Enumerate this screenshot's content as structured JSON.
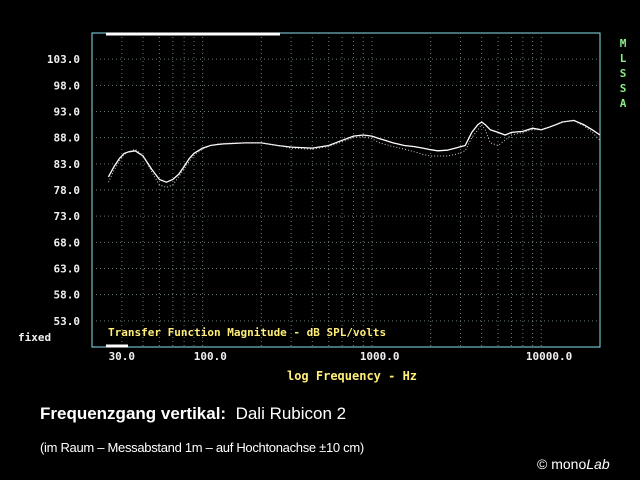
{
  "chart_data": {
    "type": "line",
    "inner_title": "Transfer Function Magnitude - dB SPL/volts",
    "xlabel": "log Frequency - Hz",
    "x_scale": "log",
    "xlim": [
      20,
      20000
    ],
    "x_tick_labels": [
      "30.0",
      "100.0",
      "1000.0",
      "10000.0"
    ],
    "x_tick_values": [
      30,
      100,
      1000,
      10000
    ],
    "ylim": [
      48,
      108
    ],
    "y_ticks": [
      "103.0",
      "98.0",
      "93.0",
      "88.0",
      "83.0",
      "78.0",
      "73.0",
      "68.0",
      "63.0",
      "58.0",
      "53.0"
    ],
    "y_bottom_label": "fixed",
    "side_label": [
      "M",
      "L",
      "S",
      "S",
      "A"
    ],
    "grid": true,
    "colors": {
      "background": "#000000",
      "frame": "#88e0ee",
      "grid": "#6a7a7a",
      "axis_text": "#f0f0f0",
      "x_label": "#ffee77",
      "inner_title": "#ffee77",
      "side_label": "#88ee88",
      "trace_main": "#ffffff",
      "trace_secondary": "#c8c8c8"
    },
    "series": [
      {
        "style": "solid",
        "x": [
          25,
          27,
          29,
          31,
          33,
          36,
          40,
          45,
          50,
          55,
          60,
          65,
          70,
          75,
          80,
          90,
          100,
          110,
          120,
          140,
          160,
          200,
          250,
          300,
          400,
          500,
          600,
          700,
          800,
          900,
          1000,
          1200,
          1400,
          1600,
          1800,
          2000,
          2200,
          2500,
          2800,
          3200,
          3500,
          3800,
          4000,
          4200,
          4500,
          5000,
          5500,
          6000,
          7000,
          8000,
          9000,
          10000,
          11000,
          12000,
          14000,
          16000,
          18000,
          20000
        ],
        "y": [
          80.5,
          82.5,
          84.0,
          85.0,
          85.3,
          85.5,
          84.5,
          82.0,
          80.0,
          79.5,
          80.0,
          81.0,
          82.5,
          84.0,
          85.0,
          86.0,
          86.5,
          86.7,
          86.8,
          86.9,
          87.0,
          87.0,
          86.5,
          86.2,
          86.0,
          86.5,
          87.5,
          88.3,
          88.5,
          88.3,
          87.8,
          87.0,
          86.5,
          86.3,
          86.0,
          85.7,
          85.5,
          85.6,
          86.0,
          86.5,
          89.0,
          90.5,
          91.0,
          90.5,
          89.5,
          89.0,
          88.5,
          89.0,
          89.2,
          89.8,
          89.5,
          90.0,
          90.5,
          91.0,
          91.3,
          90.5,
          89.5,
          88.5
        ]
      },
      {
        "style": "dotted",
        "x": [
          25,
          27,
          29,
          31,
          33,
          36,
          40,
          45,
          50,
          55,
          60,
          65,
          70,
          75,
          80,
          90,
          100,
          110,
          120,
          140,
          160,
          200,
          250,
          300,
          400,
          500,
          600,
          700,
          800,
          900,
          1000,
          1200,
          1400,
          1600,
          1800,
          2000,
          2200,
          2500,
          2800,
          3200,
          3500,
          3800,
          4000,
          4200,
          4500,
          5000,
          5500,
          6000,
          7000,
          8000,
          9000,
          10000,
          11000,
          12000,
          14000,
          16000,
          18000,
          20000
        ],
        "y": [
          79.5,
          81.8,
          83.5,
          84.8,
          85.3,
          85.8,
          84.6,
          81.5,
          79.0,
          78.5,
          79.0,
          80.5,
          82.0,
          83.5,
          84.6,
          85.8,
          86.5,
          86.8,
          86.9,
          87.0,
          87.0,
          87.0,
          86.5,
          86.0,
          85.8,
          86.3,
          87.2,
          88.0,
          88.2,
          87.8,
          87.0,
          86.3,
          85.8,
          85.3,
          84.8,
          84.5,
          84.5,
          84.5,
          84.8,
          85.5,
          88.0,
          89.5,
          90.5,
          89.5,
          87.0,
          86.5,
          87.5,
          88.5,
          89.0,
          89.5,
          89.5,
          90.0,
          90.5,
          91.0,
          91.2,
          90.3,
          89.0,
          87.5
        ]
      }
    ]
  },
  "caption": {
    "title_bold": "Frequenzgang vertikal:",
    "title_regular": "Dali Rubicon 2",
    "subtitle": "(im Raum – Messabstand 1m – auf Hochtonachse ±10 cm)",
    "copyright_symbol": "©",
    "brand_plain": "mono",
    "brand_italic": "Lab"
  }
}
